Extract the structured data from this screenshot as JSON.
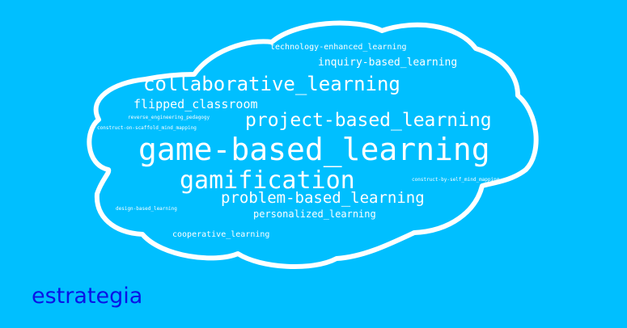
{
  "colors": {
    "background": "#00bfff",
    "cloud_outline": "#ffffff",
    "word_color": "#ffffff",
    "caption_color": "#0a14e6"
  },
  "word_cloud": {
    "words": [
      {
        "text": "technology-enhanced_learning"
      },
      {
        "text": "inquiry-based_learning"
      },
      {
        "text": "collaborative_learning"
      },
      {
        "text": "flipped_classroom"
      },
      {
        "text": "project-based_learning"
      },
      {
        "text": "reverse_engineering_pedagogy"
      },
      {
        "text": "construct-on-scaffold_mind_mapping"
      },
      {
        "text": "game-based_learning"
      },
      {
        "text": "gamification"
      },
      {
        "text": "construct-by-self_mind_mapping"
      },
      {
        "text": "problem-based_learning"
      },
      {
        "text": "design-based_learning"
      },
      {
        "text": "personalized_learning"
      },
      {
        "text": "cooperative_learning"
      }
    ]
  },
  "caption": "estrategia"
}
